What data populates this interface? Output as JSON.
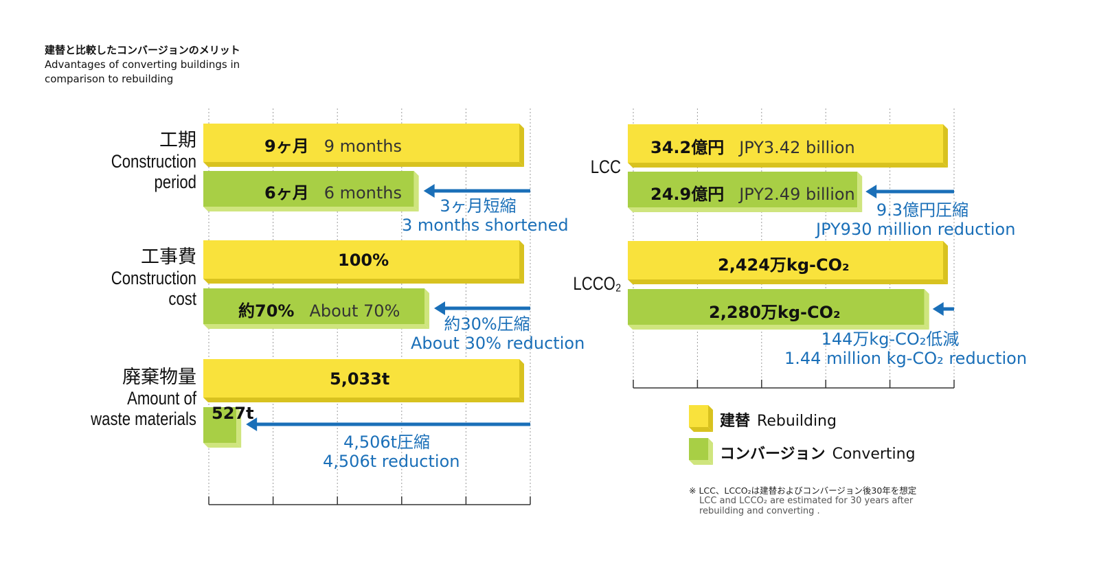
{
  "title": {
    "ja": "建替と比較したコンバージョンのメリット",
    "en": "Advantages of converting buildings in comparison to rebuilding"
  },
  "colors": {
    "rebuild": "#f9e23c",
    "rebuild_side": "#d8c21f",
    "convert": "#a8cf45",
    "convert_side": "#cfe57e",
    "arrow": "#1a6fb8"
  },
  "legend": {
    "rebuild_ja": "建替",
    "rebuild_en": "Rebuilding",
    "convert_ja": "コンバージョン",
    "convert_en": "Converting"
  },
  "footnote": {
    "ja": "※ LCC、LCCO₂は建替およびコンバージョン後30年を想定",
    "en": "LCC and LCCO₂ are estimated for 30 years after rebuilding and converting ."
  },
  "chart_data": [
    {
      "type": "bar",
      "orientation": "horizontal",
      "categories": [
        {
          "ja": "工期",
          "en": "Construction period",
          "rebuild": {
            "value": 9,
            "label_ja": "9ヶ月",
            "label_en": "9 months"
          },
          "convert": {
            "value": 6,
            "label_ja": "6ヶ月",
            "label_en": "6 months"
          },
          "diff_ja": "3ヶ月短縮",
          "diff_en": "3 months shortened"
        },
        {
          "ja": "工事費",
          "en": "Construction cost",
          "rebuild": {
            "value": 100,
            "label_ja": "100%",
            "label_en": ""
          },
          "convert": {
            "value": 70,
            "label_ja": "約70%",
            "label_en": "About 70%"
          },
          "diff_ja": "約30%圧縮",
          "diff_en": "About 30% reduction"
        },
        {
          "ja": "廃棄物量",
          "en": "Amount of waste materials",
          "rebuild": {
            "value": 5033,
            "label_ja": "5,033t",
            "label_en": ""
          },
          "convert": {
            "value": 527,
            "label_ja": "527t",
            "label_en": ""
          },
          "diff_ja": "4,506t圧縮",
          "diff_en": "4,506t reduction"
        }
      ]
    },
    {
      "type": "bar",
      "orientation": "horizontal",
      "categories": [
        {
          "ja": "",
          "en": "LCC",
          "rebuild": {
            "value": 34.2,
            "label_ja": "34.2億円",
            "label_en": "JPY3.42 billion"
          },
          "convert": {
            "value": 24.9,
            "label_ja": "24.9億円",
            "label_en": "JPY2.49 billion"
          },
          "diff_ja": "9.3億円圧縮",
          "diff_en": "JPY930 million reduction"
        },
        {
          "ja": "",
          "en": "LCCO₂",
          "rebuild": {
            "value": 2424,
            "label_ja": "2,424万kg-CO₂",
            "label_en": ""
          },
          "convert": {
            "value": 2280,
            "label_ja": "2,280万kg-CO₂",
            "label_en": ""
          },
          "diff_ja": "144万kg-CO₂低減",
          "diff_en": "1.44 million kg-CO₂ reduction"
        }
      ]
    }
  ]
}
